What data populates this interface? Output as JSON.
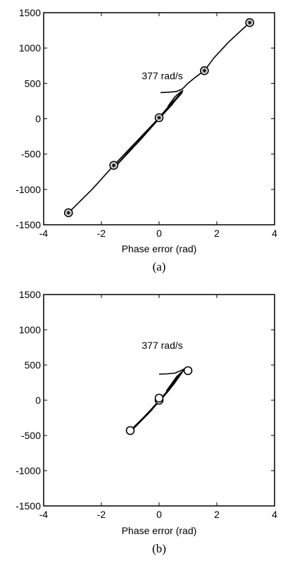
{
  "chart_data": [
    {
      "type": "line",
      "title": "",
      "xlabel": "Phase error (rad)",
      "ylabel": "",
      "xlim": [
        -4,
        4
      ],
      "ylim": [
        -1500,
        1500
      ],
      "x_ticks": [
        "-4",
        "-2",
        "0",
        "2",
        "4"
      ],
      "y_ticks": [
        "1500",
        "1000",
        "500",
        "0",
        "-500",
        "-1000",
        "-1500"
      ],
      "annotation": "377 rad/s",
      "caption": "(a)",
      "grid": false,
      "series": [
        {
          "points": [
            [
              -3.14,
              -1330
            ],
            [
              -2.3,
              -990
            ],
            [
              -1.57,
              -660
            ],
            [
              -0.8,
              -330
            ],
            [
              0.0,
              15
            ],
            [
              0.5,
              230
            ],
            [
              0.78,
              360
            ],
            [
              0.82,
              400
            ],
            [
              0.72,
              350
            ],
            [
              0.5,
              250
            ],
            [
              0.3,
              160
            ],
            [
              0.05,
              40
            ],
            [
              -0.6,
              -260
            ],
            [
              -1.45,
              -640
            ],
            [
              -1.57,
              -650
            ]
          ]
        },
        {
          "points": [
            [
              -1.5,
              -670
            ],
            [
              -0.65,
              -300
            ],
            [
              0.0,
              0
            ],
            [
              0.45,
              200
            ],
            [
              0.7,
              340
            ],
            [
              0.76,
              385
            ],
            [
              0.55,
              310
            ],
            [
              0.3,
              170
            ]
          ]
        },
        {
          "points": [
            [
              0.05,
              370
            ],
            [
              0.3,
              375
            ],
            [
              0.6,
              385
            ],
            [
              0.8,
              420
            ],
            [
              1.0,
              500
            ],
            [
              1.3,
              600
            ],
            [
              1.57,
              680
            ],
            [
              1.9,
              860
            ],
            [
              2.4,
              1080
            ],
            [
              3.14,
              1360
            ]
          ]
        }
      ],
      "markers": [
        {
          "x": -3.14,
          "y": -1330
        },
        {
          "x": -1.57,
          "y": -660
        },
        {
          "x": 0.0,
          "y": 15
        },
        {
          "x": 1.57,
          "y": 680
        },
        {
          "x": 3.14,
          "y": 1360
        }
      ]
    },
    {
      "type": "line",
      "title": "",
      "xlabel": "Phase error (rad)",
      "ylabel": "",
      "xlim": [
        -4,
        4
      ],
      "ylim": [
        -1500,
        1500
      ],
      "x_ticks": [
        "-4",
        "-2",
        "0",
        "2",
        "4"
      ],
      "y_ticks": [
        "1500",
        "1000",
        "500",
        "0",
        "-500",
        "-1000",
        "-1500"
      ],
      "annotation": "377 rad/s",
      "caption": "(b)",
      "grid": false,
      "series": [
        {
          "points": [
            [
              -1.0,
              -430
            ],
            [
              -0.6,
              -270
            ],
            [
              -0.3,
              -140
            ],
            [
              0.0,
              -20
            ],
            [
              0.3,
              120
            ],
            [
              0.55,
              250
            ],
            [
              0.72,
              350
            ],
            [
              0.8,
              400
            ],
            [
              0.85,
              430
            ],
            [
              0.7,
              360
            ],
            [
              0.4,
              190
            ],
            [
              0.1,
              40
            ],
            [
              -0.5,
              -230
            ],
            [
              -0.95,
              -420
            ]
          ]
        },
        {
          "points": [
            [
              -0.9,
              -410
            ],
            [
              -0.3,
              -160
            ],
            [
              0.05,
              10
            ],
            [
              0.35,
              150
            ],
            [
              0.62,
              300
            ],
            [
              0.75,
              390
            ],
            [
              0.6,
              330
            ],
            [
              0.25,
              130
            ]
          ]
        },
        {
          "points": [
            [
              0.0,
              370
            ],
            [
              0.3,
              375
            ],
            [
              0.55,
              385
            ],
            [
              0.75,
              420
            ],
            [
              0.9,
              450
            ],
            [
              1.0,
              450
            ],
            [
              1.05,
              430
            ],
            [
              0.95,
              410
            ],
            [
              0.85,
              405
            ]
          ]
        }
      ],
      "markers": [
        {
          "x": -1.0,
          "y": -430
        },
        {
          "x": 0.0,
          "y": 0
        },
        {
          "x": 0.0,
          "y": 30
        },
        {
          "x": 1.0,
          "y": 420
        }
      ]
    }
  ]
}
